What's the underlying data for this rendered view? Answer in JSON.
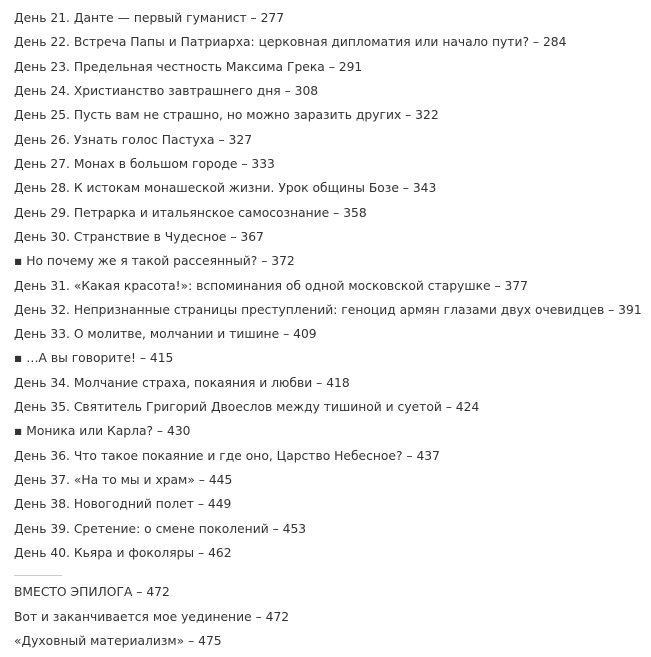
{
  "contents": {
    "items": [
      "День 21. Данте — первый гуманист – 277",
      "День 22. Встреча Папы и Патриарха: церковная дипломатия или начало пути? – 284",
      "День 23. Предельная честность Максима Грека – 291",
      "День 24. Христианство завтрашнего дня – 308",
      "День 25. Пусть вам не страшно, но можно заразить других – 322",
      "День 26. Узнать голос Пастуха – 327",
      "День 27. Монах в большом городе – 333",
      "День 28. К истокам монашеской жизни. Урок общины Бозе – 343",
      "День 29. Петрарка и итальянское самосознание – 358",
      "День 30. Странствие в Чудесное – 367",
      "▪ Но почему же я такой рассеянный? – 372",
      "День 31. «Какая красота!»: вспоминания об одной московской старушке – 377",
      "День 32. Непризнанные страницы преступлений: геноцид армян глазами двух очевидцев – 391",
      "День 33. О молитве, молчании и тишине – 409",
      "▪ …А вы говорите! – 415",
      "День 34. Молчание страха, покаяния и любви – 418",
      "День 35. Святитель Григорий Двоеслов между тишиной и суетой – 424",
      "▪ Моника или Карла? – 430",
      "День 36. Что такое покаяние и где оно, Царство Небесное? – 437",
      "День 37. «На то мы и храм» – 445",
      "День 38. Новогодний полет – 449",
      "День 39. Сретение: о смене поколений – 453",
      "День 40. Кьяра и фоколяры – 462"
    ],
    "after": [
      "ВМЕСТО ЭПИЛОГА – 472",
      "Вот и заканчивается мое уединение – 472",
      "«Духовный материализм» – 475"
    ]
  }
}
